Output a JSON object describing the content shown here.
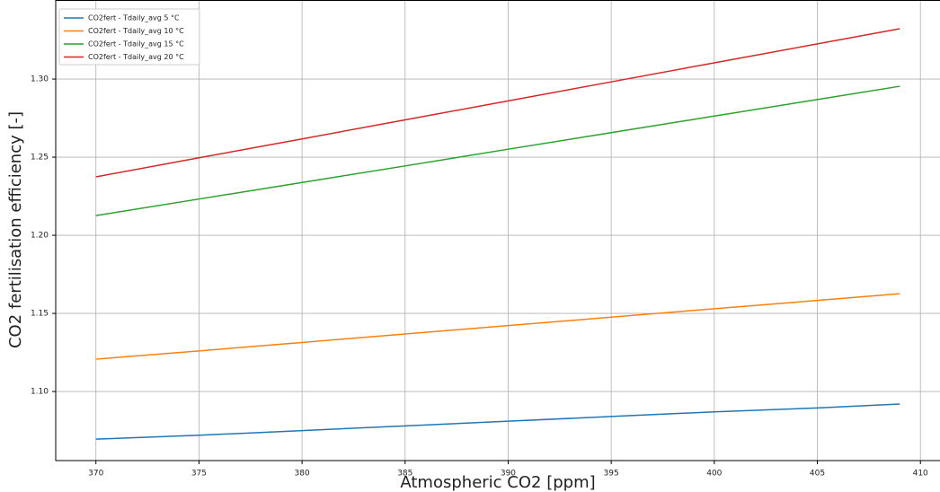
{
  "chart_data": {
    "type": "line",
    "x_label": "Atmospheric CO2 [ppm]",
    "y_label": "CO2 fertilisation efficiency [-]",
    "x": [
      370,
      375,
      380,
      385,
      390,
      395,
      400,
      405,
      409
    ],
    "series": [
      {
        "name": "CO2fert - Tdaily_avg 5 °C",
        "color": "#1f77b4",
        "values": [
          1.0695,
          1.072,
          1.075,
          1.078,
          1.081,
          1.084,
          1.087,
          1.0895,
          1.092
        ]
      },
      {
        "name": "CO2fert - Tdaily_avg 10 °C",
        "color": "#ff7f0e",
        "values": [
          1.1207,
          1.126,
          1.1314,
          1.1368,
          1.1422,
          1.1476,
          1.153,
          1.1583,
          1.1626
        ]
      },
      {
        "name": "CO2fert - Tdaily_avg 15 °C",
        "color": "#2ca02c",
        "values": [
          1.2126,
          1.2232,
          1.2338,
          1.2444,
          1.2551,
          1.2657,
          1.2763,
          1.2869,
          1.2954
        ]
      },
      {
        "name": "CO2fert - Tdaily_avg 20 °C",
        "color": "#d62728",
        "values": [
          1.2374,
          1.2496,
          1.2617,
          1.2739,
          1.286,
          1.2982,
          1.3104,
          1.3225,
          1.3322
        ]
      }
    ],
    "xlim": [
      368.05,
      410.95
    ],
    "ylim": [
      1.0558,
      1.3506
    ],
    "xticks": [
      370,
      375,
      380,
      385,
      390,
      395,
      400,
      405,
      410
    ],
    "yticks": [
      {
        "value": 1.1,
        "label": "1.10"
      },
      1.15,
      {
        "value": 1.2,
        "label": "1.20"
      },
      1.25,
      {
        "value": 1.3,
        "label": "1.30"
      }
    ],
    "grid": true,
    "legend": "upper left"
  }
}
